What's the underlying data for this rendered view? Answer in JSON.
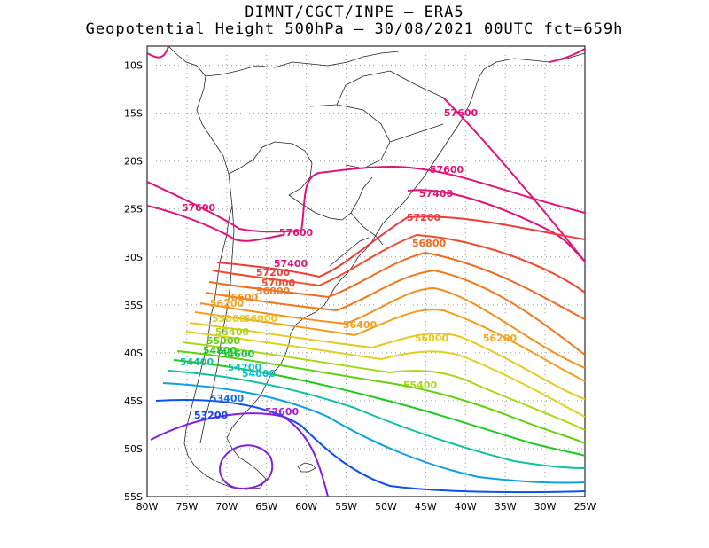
{
  "title": {
    "line1": "DIMNT/CGCT/INPE –  ERA5",
    "line2": "Geopotential Height 500hPa –  30/08/2021 00UTC fct=659h"
  },
  "axes": {
    "lon_ticks": [
      "80W",
      "75W",
      "70W",
      "65W",
      "60W",
      "55W",
      "50W",
      "45W",
      "40W",
      "35W",
      "30W",
      "25W"
    ],
    "lat_ticks": [
      "10S",
      "15S",
      "20S",
      "25S",
      "30S",
      "35S",
      "40S",
      "45S",
      "50S",
      "55S"
    ]
  },
  "contour_labels": [
    {
      "text": "57600",
      "color": "#e0137a"
    },
    {
      "text": "57600",
      "color": "#e0137a"
    },
    {
      "text": "57600",
      "color": "#e0137a"
    },
    {
      "text": "57600",
      "color": "#e0137a"
    },
    {
      "text": "57400",
      "color": "#e0137a"
    },
    {
      "text": "57400",
      "color": "#e0137a"
    },
    {
      "text": "57200",
      "color": "#f03a3a"
    },
    {
      "text": "57200",
      "color": "#f03a3a"
    },
    {
      "text": "57000",
      "color": "#f04a30"
    },
    {
      "text": "56800",
      "color": "#f06a20"
    },
    {
      "text": "56800",
      "color": "#f07a20"
    },
    {
      "text": "56600",
      "color": "#f09020"
    },
    {
      "text": "56400",
      "color": "#f0a020"
    },
    {
      "text": "56200",
      "color": "#f0a828"
    },
    {
      "text": "56200",
      "color": "#f0a828"
    },
    {
      "text": "56000",
      "color": "#e8c820"
    },
    {
      "text": "56000",
      "color": "#e8c820"
    },
    {
      "text": "55800",
      "color": "#e0d020"
    },
    {
      "text": "55400",
      "color": "#a8d818"
    },
    {
      "text": "55400",
      "color": "#a8d818"
    },
    {
      "text": "55000",
      "color": "#60d010"
    },
    {
      "text": "54800",
      "color": "#20c820"
    },
    {
      "text": "54600",
      "color": "#10c840"
    },
    {
      "text": "54400",
      "color": "#10c0a0"
    },
    {
      "text": "54200",
      "color": "#10c0c0"
    },
    {
      "text": "54000",
      "color": "#10b8d0"
    },
    {
      "text": "53400",
      "color": "#1070f0"
    },
    {
      "text": "53200",
      "color": "#1040f0"
    },
    {
      "text": "52600",
      "color": "#a020d0"
    }
  ],
  "contour_colors": [
    "#e0137a",
    "#f03a3a",
    "#f06a20",
    "#f0a020",
    "#e8c820",
    "#a8d818",
    "#40d020",
    "#10c0a0",
    "#10a0e0",
    "#1050f0",
    "#8020e0"
  ]
}
